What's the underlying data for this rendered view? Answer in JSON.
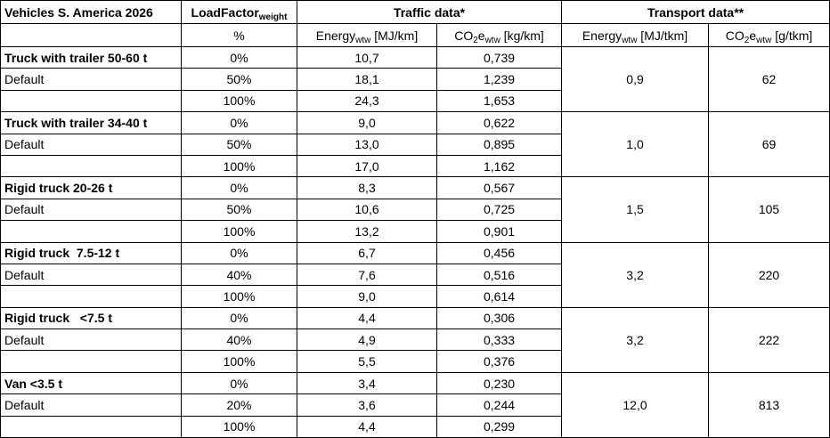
{
  "header": {
    "title": "Vehicles S. America 2026",
    "load_factor": [
      "LoadFactor",
      "weight"
    ],
    "traffic": "Traffic data*",
    "transport": "Transport data**",
    "unit_percent": "%",
    "columns": [
      [
        "Energy",
        "wtw",
        " [MJ/km]"
      ],
      [
        "CO",
        "2",
        "e",
        "wtw",
        " [kg/km]"
      ],
      [
        "Energy",
        "wtw",
        " [MJ/tkm]"
      ],
      [
        "CO",
        "2",
        "e",
        "wtw",
        " [g/tkm]"
      ]
    ]
  },
  "groups": [
    {
      "name": "Truck with trailer 50-60 t",
      "default": "Default",
      "rows": [
        [
          "0%",
          "10,7",
          "0,739"
        ],
        [
          "50%",
          "18,1",
          "1,239"
        ],
        [
          "100%",
          "24,3",
          "1,653"
        ]
      ],
      "transport": [
        "0,9",
        "62"
      ]
    },
    {
      "name": "Truck with trailer 34-40 t",
      "default": "Default",
      "rows": [
        [
          "0%",
          "9,0",
          "0,622"
        ],
        [
          "50%",
          "13,0",
          "0,895"
        ],
        [
          "100%",
          "17,0",
          "1,162"
        ]
      ],
      "transport": [
        "1,0",
        "69"
      ]
    },
    {
      "name": "Rigid truck 20-26 t",
      "default": "Default",
      "rows": [
        [
          "0%",
          "8,3",
          "0,567"
        ],
        [
          "50%",
          "10,6",
          "0,725"
        ],
        [
          "100%",
          "13,2",
          "0,901"
        ]
      ],
      "transport": [
        "1,5",
        "105"
      ]
    },
    {
      "name": "Rigid truck  7.5-12 t",
      "default": "Default",
      "rows": [
        [
          "0%",
          "6,7",
          "0,456"
        ],
        [
          "40%",
          "7,6",
          "0,516"
        ],
        [
          "100%",
          "9,0",
          "0,614"
        ]
      ],
      "transport": [
        "3,2",
        "220"
      ]
    },
    {
      "name": "Rigid truck   <7.5 t",
      "default": "Default",
      "rows": [
        [
          "0%",
          "4,4",
          "0,306"
        ],
        [
          "40%",
          "4,9",
          "0,333"
        ],
        [
          "100%",
          "5,5",
          "0,376"
        ]
      ],
      "transport": [
        "3,2",
        "222"
      ]
    },
    {
      "name": "Van <3.5 t",
      "default": "Default",
      "rows": [
        [
          "0%",
          "3,4",
          "0,230"
        ],
        [
          "20%",
          "3,6",
          "0,244"
        ],
        [
          "100%",
          "4,4",
          "0,299"
        ]
      ],
      "transport": [
        "12,0",
        "813"
      ]
    }
  ]
}
